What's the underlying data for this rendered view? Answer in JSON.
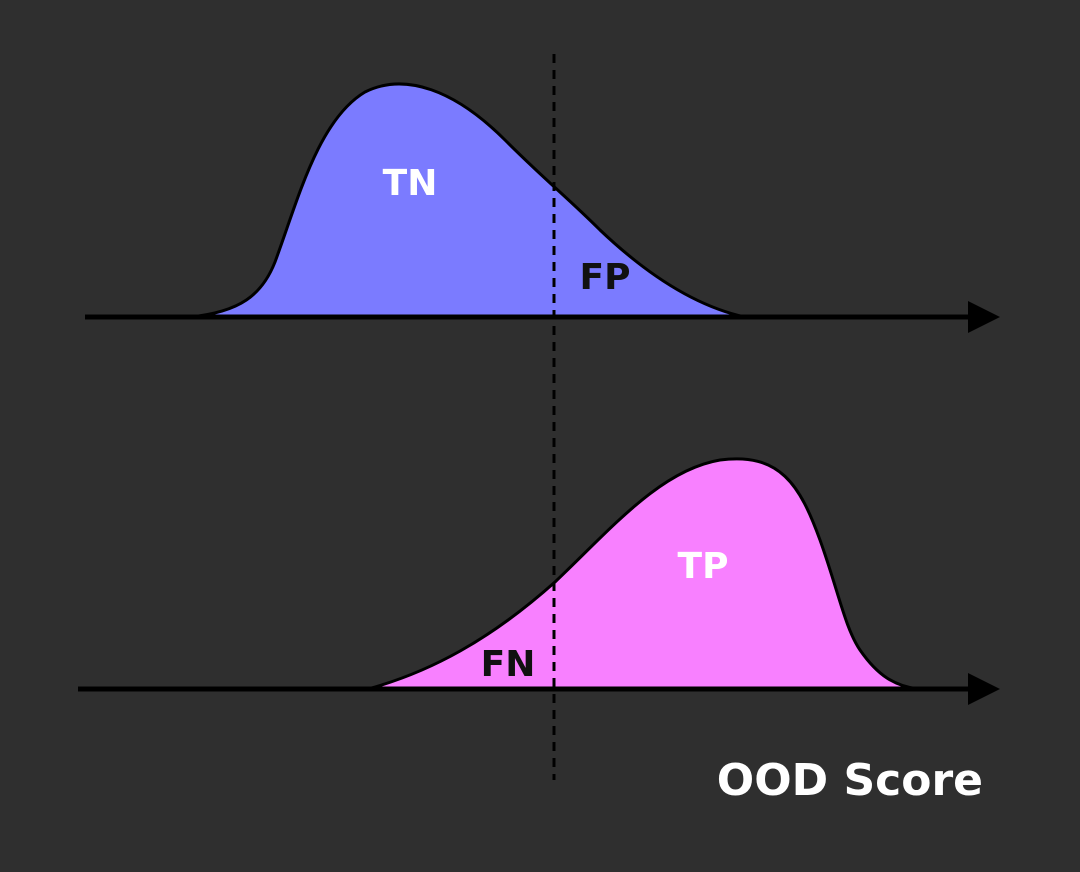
{
  "colors": {
    "background": "#2f2f2f",
    "in_distribution_fill": "#7b7bff",
    "ood_fill": "#f880ff",
    "axis": "#000000",
    "threshold_line": "#000000"
  },
  "labels": {
    "tn": "TN",
    "fp": "FP",
    "fn": "FN",
    "tp": "TP",
    "x_axis": "OOD Score"
  }
}
